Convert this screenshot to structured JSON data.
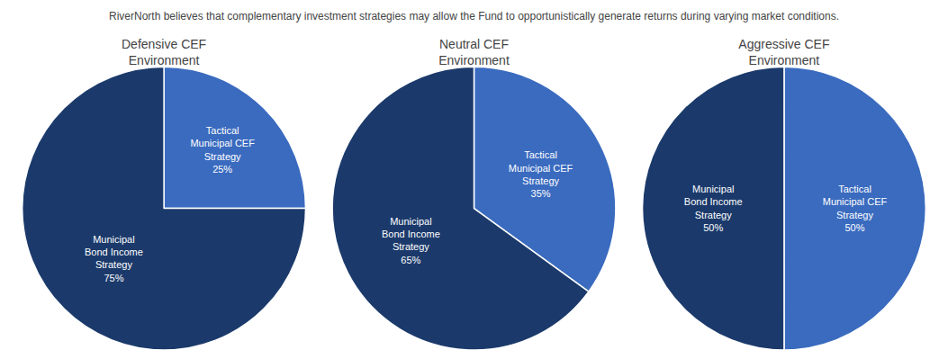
{
  "title": "RiverNorth believes that complementary investment strategies may allow the Fund to opportunistically generate returns during varying market conditions.",
  "chart_data": [
    {
      "type": "pie",
      "title": "Defensive CEF\nEnvironment",
      "categories": [
        "Tactical\nMunicipal CEF\nStrategy",
        "Municipal\nBond Income\nStrategy"
      ],
      "values": [
        25,
        75
      ],
      "value_labels": [
        "25%",
        "75%"
      ],
      "data_labels": true,
      "colors": [
        "#3A6BBF",
        "#1B3A6B"
      ]
    },
    {
      "type": "pie",
      "title": "Neutral CEF\nEnvironment",
      "categories": [
        "Tactical\nMunicipal CEF\nStrategy",
        "Municipal\nBond Income\nStrategy"
      ],
      "values": [
        35,
        65
      ],
      "value_labels": [
        "35%",
        "65%"
      ],
      "data_labels": true,
      "colors": [
        "#3A6BBF",
        "#1B3A6B"
      ]
    },
    {
      "type": "pie",
      "title": "Aggressive CEF\nEnvironment",
      "categories": [
        "Tactical\nMunicipal CEF\nStrategy",
        "Municipal\nBond Income\nStrategy"
      ],
      "values": [
        50,
        50
      ],
      "value_labels": [
        "50%",
        "50%"
      ],
      "data_labels": true,
      "colors": [
        "#3A6BBF",
        "#1B3A6B"
      ]
    }
  ]
}
